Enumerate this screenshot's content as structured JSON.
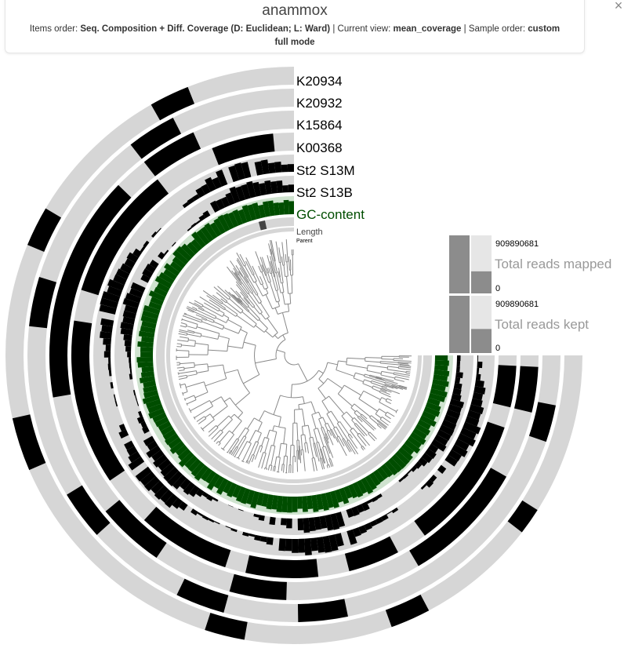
{
  "header": {
    "project_name": "anammox",
    "items_order_label": "Items order:",
    "items_order_value": "Seq. Composition + Diff. Coverage (D: Euclidean; L: Ward)",
    "current_view_label": "Current view:",
    "current_view_value": "mean_coverage",
    "sample_order_label": "Sample order:",
    "sample_order_value": "custom",
    "mode": "full mode",
    "close_glyph": "×"
  },
  "layers": [
    {
      "name": "K20934",
      "color": "#000000"
    },
    {
      "name": "K20932",
      "color": "#000000"
    },
    {
      "name": "K15864",
      "color": "#000000"
    },
    {
      "name": "K00368",
      "color": "#000000"
    },
    {
      "name": "St2 S13M",
      "color": "#000000"
    },
    {
      "name": "St2 S13B",
      "color": "#000000"
    },
    {
      "name": "GC-content",
      "color": "#004d00"
    },
    {
      "name": "Length",
      "color": "#333333"
    },
    {
      "name": "Parent",
      "color": "#000000"
    }
  ],
  "samples": [
    {
      "name": "Total reads mapped",
      "max": "909890681",
      "min": "0"
    },
    {
      "name": "Total reads kept",
      "max": "909890681",
      "min": "0"
    }
  ],
  "colors": {
    "ring_background": "#d6d6d6",
    "bar": "#000000",
    "gc_content": "#004d00",
    "gc_background": "#cfe3cf",
    "sample_bar": "#8c8c8c",
    "sample_bg": "#e6e6e6",
    "sample_label": "#999999"
  }
}
